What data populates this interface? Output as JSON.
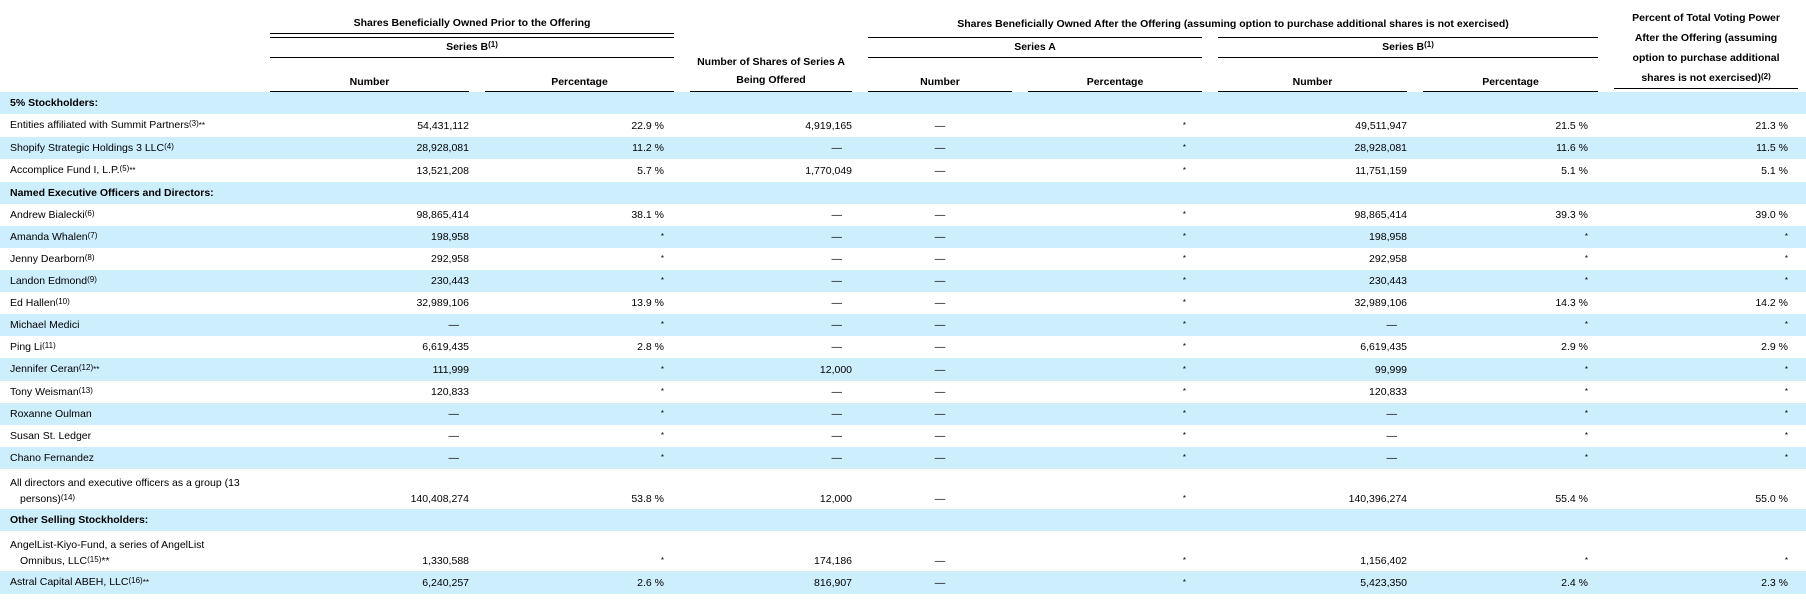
{
  "headers": {
    "prior_group": "Shares Beneficially Owned Prior to the Offering",
    "after_group": "Shares Beneficially Owned After the Offering (assuming option to purchase additional shares is not exercised)",
    "series_b": "Series B",
    "series_b_note": "(1)",
    "series_a": "Series A",
    "number": "Number",
    "percentage": "Percentage",
    "offered_line1": "Number of Shares of Series A",
    "offered_line2": "Being Offered",
    "vote_line1": "Percent of Total Voting Power",
    "vote_line2": "After the Offering (assuming",
    "vote_line3": "option to purchase additional",
    "vote_line4": "shares is not exercised)",
    "vote_note": "(2)"
  },
  "sections": {
    "five_pct": "5% Stockholders:",
    "officers": "Named Executive Officers and Directors:",
    "other": "Other Selling Stockholders:"
  },
  "rows": [
    {
      "name": "Entities affiliated with Summit Partners",
      "note": "(3)",
      "suffix": "**",
      "b_num": "54,431,112",
      "b_pct": "22.9 %",
      "offered": "4,919,165",
      "a_num": "—",
      "a_pct": "*",
      "b2_num": "49,511,947",
      "b2_pct": "21.5 %",
      "vote": "21.3 %"
    },
    {
      "name": "Shopify Strategic Holdings 3 LLC",
      "note": "(4)",
      "suffix": "",
      "b_num": "28,928,081",
      "b_pct": "11.2 %",
      "offered": "—",
      "a_num": "—",
      "a_pct": "*",
      "b2_num": "28,928,081",
      "b2_pct": "11.6 %",
      "vote": "11.5 %"
    },
    {
      "name": "Accomplice Fund I, L.P.",
      "note": "(5)",
      "suffix": "**",
      "b_num": "13,521,208",
      "b_pct": "5.7 %",
      "offered": "1,770,049",
      "a_num": "—",
      "a_pct": "*",
      "b2_num": "11,751,159",
      "b2_pct": "5.1 %",
      "vote": "5.1 %"
    },
    {
      "name": "Andrew Bialecki",
      "note": "(6)",
      "suffix": "",
      "b_num": "98,865,414",
      "b_pct": "38.1 %",
      "offered": "—",
      "a_num": "—",
      "a_pct": "*",
      "b2_num": "98,865,414",
      "b2_pct": "39.3 %",
      "vote": "39.0 %"
    },
    {
      "name": "Amanda Whalen",
      "note": "(7)",
      "suffix": "",
      "b_num": "198,958",
      "b_pct": "*",
      "offered": "—",
      "a_num": "—",
      "a_pct": "*",
      "b2_num": "198,958",
      "b2_pct": "*",
      "vote": "*"
    },
    {
      "name": "Jenny Dearborn",
      "note": "(8)",
      "suffix": "",
      "b_num": "292,958",
      "b_pct": "*",
      "offered": "—",
      "a_num": "—",
      "a_pct": "*",
      "b2_num": "292,958",
      "b2_pct": "*",
      "vote": "*"
    },
    {
      "name": "Landon Edmond",
      "note": "(9)",
      "suffix": "",
      "b_num": "230,443",
      "b_pct": "*",
      "offered": "—",
      "a_num": "—",
      "a_pct": "*",
      "b2_num": "230,443",
      "b2_pct": "*",
      "vote": "*"
    },
    {
      "name": "Ed Hallen",
      "note": "(10)",
      "suffix": "",
      "b_num": "32,989,106",
      "b_pct": "13.9 %",
      "offered": "—",
      "a_num": "—",
      "a_pct": "*",
      "b2_num": "32,989,106",
      "b2_pct": "14.3 %",
      "vote": "14.2 %"
    },
    {
      "name": "Michael Medici",
      "note": "",
      "suffix": "",
      "b_num": "—",
      "b_pct": "*",
      "offered": "—",
      "a_num": "—",
      "a_pct": "*",
      "b2_num": "—",
      "b2_pct": "*",
      "vote": "*"
    },
    {
      "name": "Ping Li",
      "note": "(11)",
      "suffix": "",
      "b_num": "6,619,435",
      "b_pct": "2.8 %",
      "offered": "—",
      "a_num": "—",
      "a_pct": "*",
      "b2_num": "6,619,435",
      "b2_pct": "2.9 %",
      "vote": "2.9 %"
    },
    {
      "name": "Jennifer Ceran",
      "note": "(12)",
      "suffix": "**",
      "b_num": "111,999",
      "b_pct": "*",
      "offered": "12,000",
      "a_num": "—",
      "a_pct": "*",
      "b2_num": "99,999",
      "b2_pct": "*",
      "vote": "*"
    },
    {
      "name": "Tony Weisman",
      "note": "(13)",
      "suffix": "",
      "b_num": "120,833",
      "b_pct": "*",
      "offered": "—",
      "a_num": "—",
      "a_pct": "*",
      "b2_num": "120,833",
      "b2_pct": "*",
      "vote": "*"
    },
    {
      "name": "Roxanne Oulman",
      "note": "",
      "suffix": "",
      "b_num": "—",
      "b_pct": "*",
      "offered": "—",
      "a_num": "—",
      "a_pct": "*",
      "b2_num": "—",
      "b2_pct": "*",
      "vote": "*"
    },
    {
      "name": "Susan St. Ledger",
      "note": "",
      "suffix": "",
      "b_num": "—",
      "b_pct": "*",
      "offered": "—",
      "a_num": "—",
      "a_pct": "*",
      "b2_num": "—",
      "b2_pct": "*",
      "vote": "*"
    },
    {
      "name": "Chano Fernandez",
      "note": "",
      "suffix": "",
      "b_num": "—",
      "b_pct": "*",
      "offered": "—",
      "a_num": "—",
      "a_pct": "*",
      "b2_num": "—",
      "b2_pct": "*",
      "vote": "*"
    },
    {
      "name_line1": "All directors and executive officers as a group (13",
      "name_line2": "persons)",
      "note": "(14)",
      "suffix": "",
      "b_num": "140,408,274",
      "b_pct": "53.8 %",
      "offered": "12,000",
      "a_num": "—",
      "a_pct": "*",
      "b2_num": "140,396,274",
      "b2_pct": "55.4 %",
      "vote": "55.0 %"
    },
    {
      "name_line1": "AngelList-Kiyo-Fund, a series of AngelList",
      "name_line2": "Omnibus, LLC",
      "note": "(15)",
      "suffix": "**",
      "b_num": "1,330,588",
      "b_pct": "*",
      "offered": "174,186",
      "a_num": "—",
      "a_pct": "*",
      "b2_num": "1,156,402",
      "b2_pct": "*",
      "vote": "*"
    },
    {
      "name": "Astral Capital ABEH, LLC",
      "note": "(16)",
      "suffix": "**",
      "b_num": "6,240,257",
      "b_pct": "2.6 %",
      "offered": "816,907",
      "a_num": "—",
      "a_pct": "*",
      "b2_num": "5,423,350",
      "b2_pct": "2.4 %",
      "vote": "2.3 %"
    }
  ]
}
